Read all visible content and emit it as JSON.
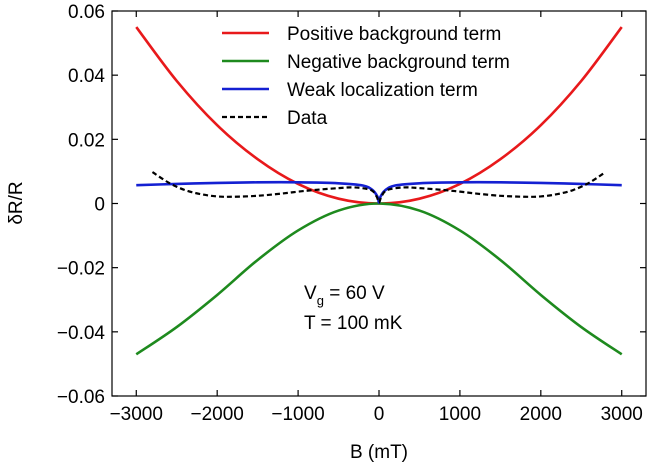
{
  "chart_data": {
    "type": "line",
    "title": "",
    "xlabel": "B (mT)",
    "ylabel": "δR/R",
    "xlim": [
      -3300,
      3300
    ],
    "ylim": [
      -0.06,
      0.06
    ],
    "xticks": [
      -3000,
      -2000,
      -1000,
      0,
      1000,
      2000,
      3000
    ],
    "xtick_labels": [
      "−3000",
      "−2000",
      "−1000",
      "0",
      "1000",
      "2000",
      "3000"
    ],
    "yticks": [
      -0.06,
      -0.04,
      -0.02,
      0,
      0.02,
      0.04,
      0.06
    ],
    "ytick_labels": [
      "−0.06",
      "−0.04",
      "−0.02",
      "0",
      "0.02",
      "0.04",
      "0.06"
    ],
    "grid": false,
    "legend_position": "top",
    "series": [
      {
        "name": "Positive background term",
        "color": "#e8191b",
        "dash": "solid",
        "x": [
          -3000,
          -2500,
          -2000,
          -1500,
          -1000,
          -500,
          0,
          500,
          1000,
          1500,
          2000,
          2500,
          3000
        ],
        "y": [
          0.055,
          0.0382,
          0.0244,
          0.0138,
          0.0061,
          0.0015,
          0.0,
          0.0015,
          0.0061,
          0.0138,
          0.0244,
          0.0382,
          0.055
        ]
      },
      {
        "name": "Negative background term",
        "color": "#1e8a1e",
        "dash": "solid",
        "x": [
          -3000,
          -2500,
          -2000,
          -1500,
          -1000,
          -500,
          0,
          500,
          1000,
          1500,
          2000,
          2500,
          3000
        ],
        "y": [
          -0.047,
          -0.0385,
          -0.0285,
          -0.0176,
          -0.0084,
          -0.0022,
          0.0,
          -0.0022,
          -0.0084,
          -0.0176,
          -0.0285,
          -0.0385,
          -0.047
        ]
      },
      {
        "name": "Weak localization term",
        "color": "#1420d2",
        "dash": "solid",
        "x": [
          -3000,
          -2500,
          -2000,
          -1500,
          -1000,
          -500,
          -200,
          -80,
          -20,
          0,
          20,
          80,
          200,
          500,
          1000,
          1500,
          2000,
          2500,
          3000
        ],
        "y": [
          0.0057,
          0.0061,
          0.0064,
          0.0066,
          0.0066,
          0.0063,
          0.0056,
          0.0042,
          0.0022,
          0.0003,
          0.0022,
          0.0042,
          0.0056,
          0.0063,
          0.0066,
          0.0066,
          0.0064,
          0.0061,
          0.0057
        ]
      },
      {
        "name": "Data",
        "color": "#000000",
        "dash": "dashed",
        "x": [
          -2800,
          -2600,
          -2400,
          -2200,
          -2000,
          -1800,
          -1500,
          -1200,
          -1000,
          -800,
          -500,
          -300,
          -100,
          -30,
          0,
          30,
          100,
          300,
          500,
          800,
          1000,
          1200,
          1500,
          1800,
          2000,
          2200,
          2400,
          2600,
          2800
        ],
        "y": [
          0.0098,
          0.0065,
          0.0042,
          0.0029,
          0.0022,
          0.0021,
          0.0024,
          0.0031,
          0.0037,
          0.0042,
          0.0048,
          0.005,
          0.0042,
          0.0022,
          0.0003,
          0.0022,
          0.0042,
          0.005,
          0.0048,
          0.0042,
          0.0037,
          0.0031,
          0.0024,
          0.0021,
          0.0022,
          0.0029,
          0.0042,
          0.0065,
          0.0098
        ]
      }
    ],
    "annotations": [
      {
        "lines": [
          "V",
          "g",
          " = 60 V"
        ]
      },
      {
        "text": "T = 100 mK"
      }
    ]
  }
}
